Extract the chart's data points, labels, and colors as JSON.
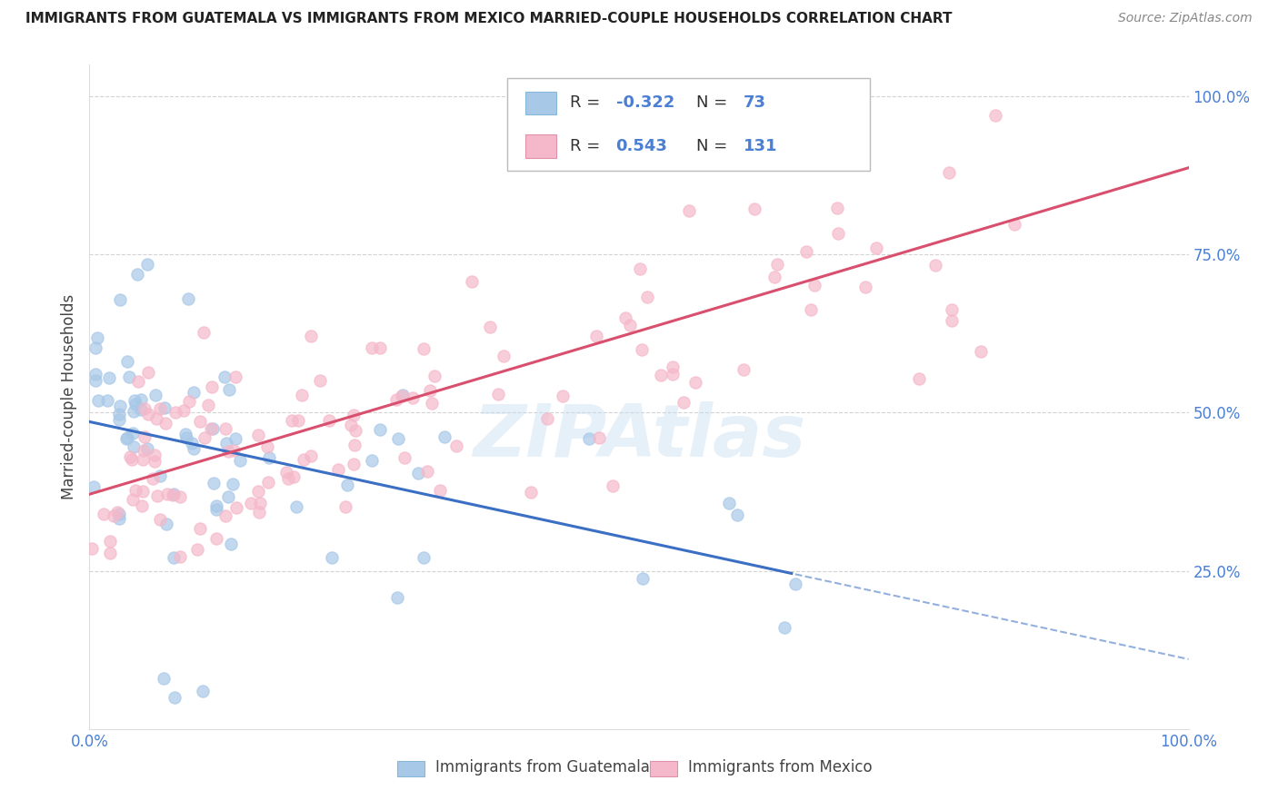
{
  "title": "IMMIGRANTS FROM GUATEMALA VS IMMIGRANTS FROM MEXICO MARRIED-COUPLE HOUSEHOLDS CORRELATION CHART",
  "source": "Source: ZipAtlas.com",
  "ylabel": "Married-couple Households",
  "xlim": [
    0.0,
    1.0
  ],
  "ylim": [
    0.0,
    1.05
  ],
  "yticks": [
    0.25,
    0.5,
    0.75,
    1.0
  ],
  "ytick_labels": [
    "25.0%",
    "50.0%",
    "75.0%",
    "100.0%"
  ],
  "xticks": [
    0.0,
    0.25,
    0.5,
    0.75,
    1.0
  ],
  "xtick_labels": [
    "0.0%",
    "",
    "",
    "",
    "100.0%"
  ],
  "legend_blue_R": "-0.322",
  "legend_blue_N": "73",
  "legend_pink_R": "0.543",
  "legend_pink_N": "131",
  "legend_label_blue": "Immigrants from Guatemala",
  "legend_label_pink": "Immigrants from Mexico",
  "blue_scatter_color": "#a8c8e8",
  "pink_scatter_color": "#f5b8ca",
  "blue_line_color": "#3a6fc4",
  "pink_line_color": "#d94f6e",
  "tick_label_color": "#4a7fd4",
  "watermark": "ZIPAtlas",
  "background_color": "#ffffff",
  "grid_color": "#c8c8c8",
  "title_color": "#222222",
  "source_color": "#888888",
  "ylabel_color": "#444444",
  "legend_R_color": "#4a7fd4",
  "legend_N_color": "#4a7fd4",
  "legend_text_color": "#333333"
}
